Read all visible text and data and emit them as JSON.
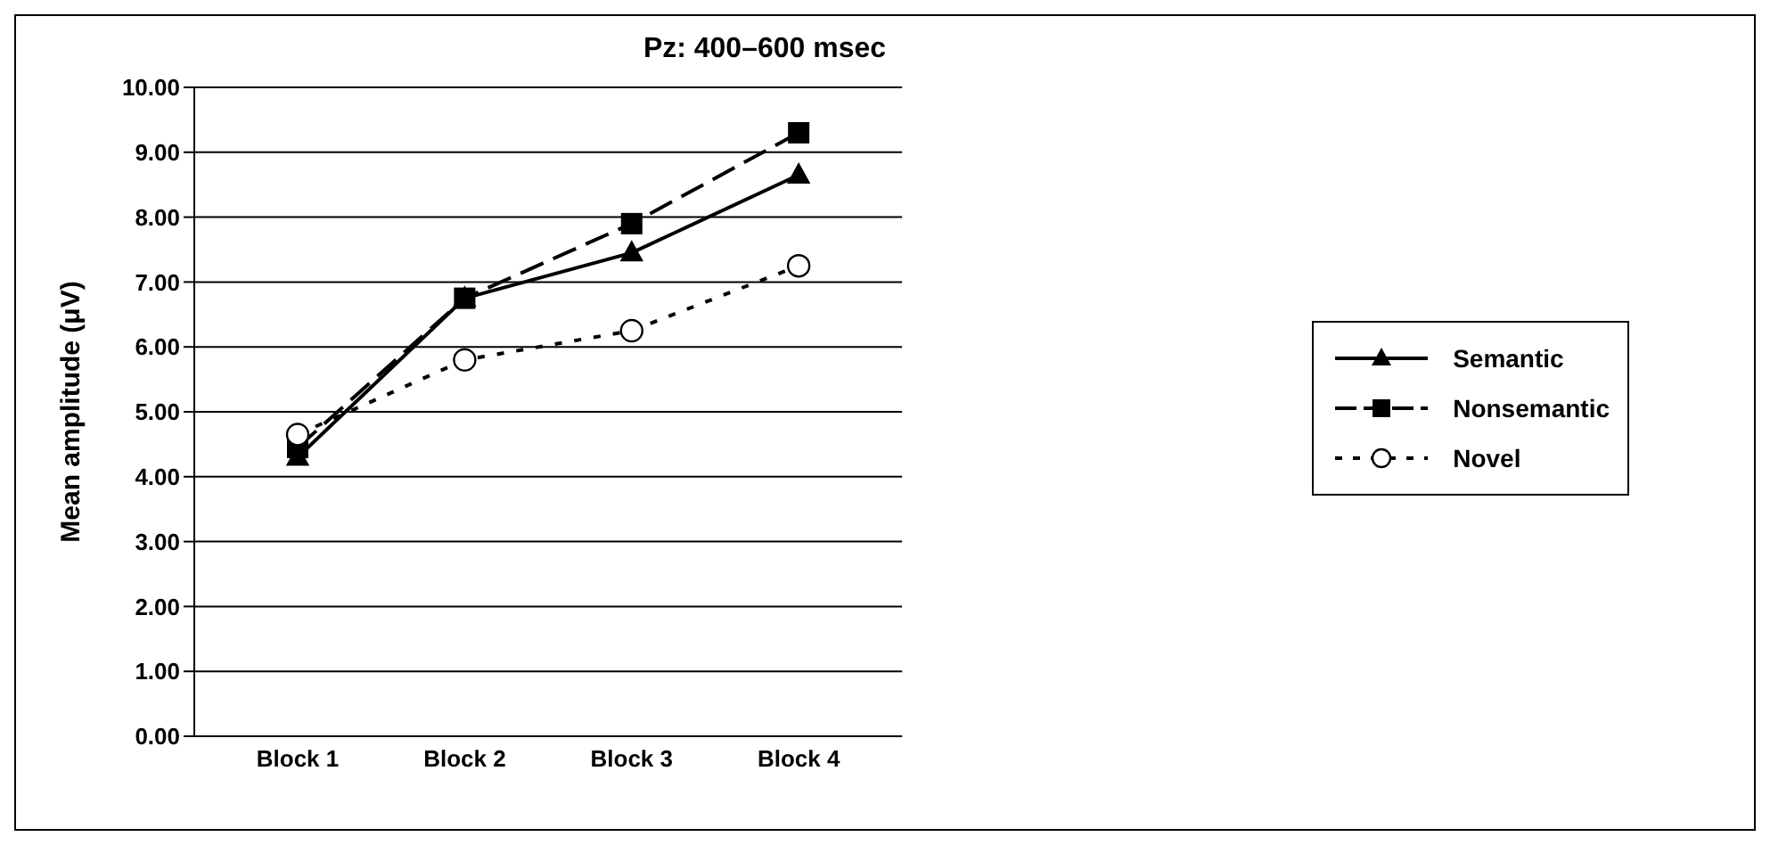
{
  "chart_data": {
    "type": "line",
    "title": "Pz: 400–600 msec",
    "ylabel": "Mean amplitude (μV)",
    "categories": [
      "Block 1",
      "Block 2",
      "Block 3",
      "Block 4"
    ],
    "series": [
      {
        "name": "Semantic",
        "color": "#000000",
        "values": [
          4.3,
          6.75,
          7.45,
          8.65
        ],
        "marker": "triangle",
        "line_style": "solid"
      },
      {
        "name": "Nonsemantic",
        "color": "#000000",
        "values": [
          4.45,
          6.75,
          7.9,
          9.3
        ],
        "marker": "square",
        "line_style": "dashed"
      },
      {
        "name": "Novel",
        "color": "#000000",
        "values": [
          4.65,
          5.8,
          6.25,
          7.25
        ],
        "marker": "circle",
        "line_style": "dotted"
      }
    ],
    "ylim": [
      0,
      10
    ],
    "yticks": [
      {
        "value": 0,
        "label": "0.00"
      },
      {
        "value": 1,
        "label": "1.00"
      },
      {
        "value": 2,
        "label": "2.00"
      },
      {
        "value": 3,
        "label": "3.00"
      },
      {
        "value": 4,
        "label": "4.00"
      },
      {
        "value": 5,
        "label": "5.00"
      },
      {
        "value": 6,
        "label": "6.00"
      },
      {
        "value": 7,
        "label": "7.00"
      },
      {
        "value": 8,
        "label": "8.00"
      },
      {
        "value": 9,
        "label": "9.00"
      },
      {
        "value": 10,
        "label": "10.00"
      }
    ],
    "grid": "y",
    "legend": "right"
  }
}
